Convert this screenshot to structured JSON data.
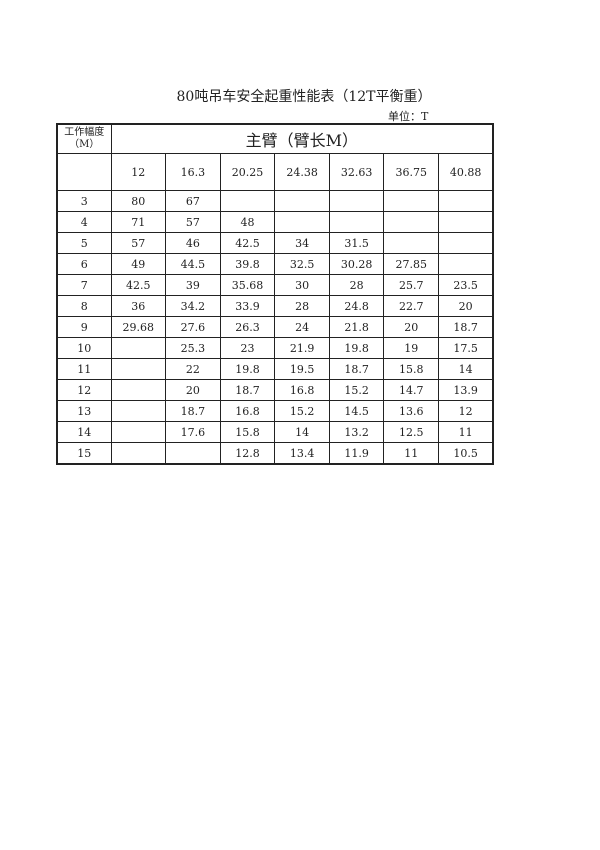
{
  "title": "80吨吊车安全起重性能表（12T平衡重）",
  "unit": "单位：T",
  "table": {
    "corner_header": [
      "工作幅度",
      "（M）"
    ],
    "group_header": "主臂（臂长M）",
    "boom_lengths": [
      "12",
      "16.3",
      "20.25",
      "24.38",
      "32.63",
      "36.75",
      "40.88"
    ],
    "rows": [
      {
        "radius": "3",
        "values": [
          "80",
          "67",
          "",
          "",
          "",
          "",
          ""
        ]
      },
      {
        "radius": "4",
        "values": [
          "71",
          "57",
          "48",
          "",
          "",
          "",
          ""
        ]
      },
      {
        "radius": "5",
        "values": [
          "57",
          "46",
          "42.5",
          "34",
          "31.5",
          "",
          ""
        ]
      },
      {
        "radius": "6",
        "values": [
          "49",
          "44.5",
          "39.8",
          "32.5",
          "30.28",
          "27.85",
          ""
        ]
      },
      {
        "radius": "7",
        "values": [
          "42.5",
          "39",
          "35.68",
          "30",
          "28",
          "25.7",
          "23.5"
        ]
      },
      {
        "radius": "8",
        "values": [
          "36",
          "34.2",
          "33.9",
          "28",
          "24.8",
          "22.7",
          "20"
        ]
      },
      {
        "radius": "9",
        "values": [
          "29.68",
          "27.6",
          "26.3",
          "24",
          "21.8",
          "20",
          "18.7"
        ]
      },
      {
        "radius": "10",
        "values": [
          "",
          "25.3",
          "23",
          "21.9",
          "19.8",
          "19",
          "17.5"
        ]
      },
      {
        "radius": "11",
        "values": [
          "",
          "22",
          "19.8",
          "19.5",
          "18.7",
          "15.8",
          "14"
        ]
      },
      {
        "radius": "12",
        "values": [
          "",
          "20",
          "18.7",
          "16.8",
          "15.2",
          "14.7",
          "13.9"
        ]
      },
      {
        "radius": "13",
        "values": [
          "",
          "18.7",
          "16.8",
          "15.2",
          "14.5",
          "13.6",
          "12"
        ]
      },
      {
        "radius": "14",
        "values": [
          "",
          "17.6",
          "15.8",
          "14",
          "13.2",
          "12.5",
          "11"
        ]
      },
      {
        "radius": "15",
        "values": [
          "",
          "",
          "12.8",
          "13.4",
          "11.9",
          "11",
          "10.5"
        ]
      }
    ]
  }
}
